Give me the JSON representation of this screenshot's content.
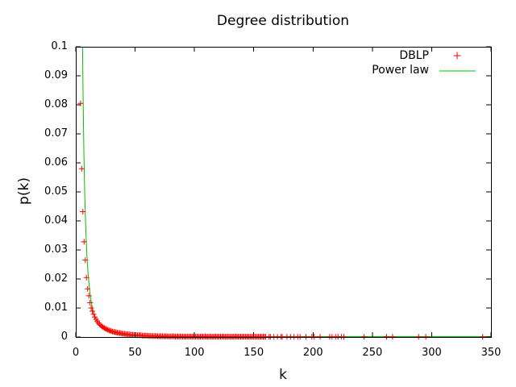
{
  "chart_data": {
    "type": "scatter",
    "title": "Degree distribution",
    "xlabel": "k",
    "ylabel": "p(k)",
    "xlim": [
      0,
      350
    ],
    "ylim": [
      0,
      0.1
    ],
    "grid": false,
    "background_color": "#ffffff",
    "axis_color": "#000000",
    "x_ticks": [
      0,
      50,
      100,
      150,
      200,
      250,
      300,
      350
    ],
    "y_ticks": [
      {
        "label": "0",
        "value": 0
      },
      {
        "label": "0.01",
        "value": 0.01
      },
      {
        "label": "0.02",
        "value": 0.02
      },
      {
        "label": "0.03",
        "value": 0.03
      },
      {
        "label": "0.04",
        "value": 0.04
      },
      {
        "label": "0.05",
        "value": 0.05
      },
      {
        "label": "0.06",
        "value": 0.06
      },
      {
        "label": "0.07",
        "value": 0.07
      },
      {
        "label": "0.08",
        "value": 0.08
      },
      {
        "label": "0.09",
        "value": 0.09
      },
      {
        "label": "0.1",
        "value": 0.1
      }
    ],
    "legend": {
      "position": "top-right",
      "entries": [
        {
          "label": "DBLP",
          "sample": "plus-marker",
          "color": "#ff0000"
        },
        {
          "label": "Power law",
          "sample": "line",
          "color": "#00c000"
        }
      ]
    },
    "series": [
      {
        "name": "DBLP",
        "type": "points",
        "marker": "plus",
        "color": "#ff0000",
        "points": [
          [
            4,
            0.0805
          ],
          [
            5,
            0.058
          ],
          [
            6,
            0.0432
          ],
          [
            7,
            0.0328
          ],
          [
            8,
            0.0265
          ],
          [
            9,
            0.0205
          ],
          [
            10,
            0.0166
          ],
          [
            11,
            0.0142
          ],
          [
            12,
            0.0118
          ],
          [
            13,
            0.01
          ],
          [
            14,
            0.0089
          ],
          [
            15,
            0.0078
          ],
          [
            16,
            0.0069
          ],
          [
            17,
            0.0061
          ],
          [
            18,
            0.0055
          ],
          [
            19,
            0.0049
          ],
          [
            20,
            0.0044
          ],
          [
            21,
            0.004
          ],
          [
            22,
            0.0037
          ],
          [
            23,
            0.0034
          ],
          [
            24,
            0.0031
          ],
          [
            25,
            0.0029
          ],
          [
            26,
            0.0027
          ],
          [
            27,
            0.0025
          ],
          [
            28,
            0.0023
          ],
          [
            29,
            0.0022
          ],
          [
            30,
            0.002
          ],
          [
            31,
            0.0019
          ],
          [
            32,
            0.0018
          ],
          [
            33,
            0.0017
          ],
          [
            34,
            0.0016
          ],
          [
            35,
            0.0015
          ],
          [
            36,
            0.0014
          ],
          [
            37,
            0.0014
          ],
          [
            38,
            0.0013
          ],
          [
            39,
            0.0012
          ],
          [
            40,
            0.0012
          ],
          [
            41,
            0.0011
          ],
          [
            42,
            0.001
          ],
          [
            43,
            0.001
          ],
          [
            44,
            0.0009
          ],
          [
            45,
            0.0009
          ],
          [
            46,
            0.0008
          ],
          [
            47,
            0.0008
          ],
          [
            48,
            0.0008
          ],
          [
            49,
            0.0007
          ],
          [
            50,
            0.0007
          ],
          [
            51,
            0.0007
          ],
          [
            52,
            0.0006
          ],
          [
            53,
            0.0006
          ],
          [
            54,
            0.0006
          ],
          [
            55,
            0.0006
          ],
          [
            56,
            0.0005
          ],
          [
            57,
            0.0005
          ],
          [
            58,
            0.0005
          ],
          [
            59,
            0.0005
          ],
          [
            60,
            0.0005
          ],
          [
            61,
            0.0004
          ],
          [
            62,
            0.0004
          ],
          [
            63,
            0.0003
          ],
          [
            64,
            0.0004
          ],
          [
            65,
            0.0003
          ],
          [
            66,
            0.0003
          ],
          [
            67,
            0.0004
          ],
          [
            68,
            0.0003
          ],
          [
            69,
            0.0003
          ],
          [
            70,
            0.0002
          ],
          [
            71,
            0.0003
          ],
          [
            72,
            0.0002
          ],
          [
            73,
            0.0003
          ],
          [
            74,
            0.0002
          ],
          [
            75,
            0.0002
          ],
          [
            76,
            0.0003
          ],
          [
            77,
            0.0002
          ],
          [
            78,
            0.0002
          ],
          [
            79,
            0.0002
          ],
          [
            80,
            0.0002
          ],
          [
            81,
            0.0002
          ],
          [
            82,
            0.0003
          ],
          [
            83,
            0.0002
          ],
          [
            84,
            0.0001
          ],
          [
            85,
            0.0002
          ],
          [
            86,
            0.0002
          ],
          [
            87,
            0.0001
          ],
          [
            88,
            0.0002
          ],
          [
            89,
            0.0002
          ],
          [
            90,
            0.0001
          ],
          [
            91,
            0.0002
          ],
          [
            92,
            0.0001
          ],
          [
            93,
            0.0001
          ],
          [
            94,
            0.0002
          ],
          [
            95,
            0.0001
          ],
          [
            96,
            0.0002
          ],
          [
            97,
            0.0001
          ],
          [
            98,
            0.0001
          ],
          [
            99,
            0.0002
          ],
          [
            100,
            0.0001
          ],
          [
            101,
            0.0001
          ],
          [
            102,
            0.0002
          ],
          [
            103,
            0.0001
          ],
          [
            104,
            0.0001
          ],
          [
            105,
            0.0001
          ],
          [
            106,
            0.0002
          ],
          [
            107,
            0.0001
          ],
          [
            108,
            0.0001
          ],
          [
            109,
            0.0002
          ],
          [
            110,
            0.0001
          ],
          [
            111,
            0.0001
          ],
          [
            112,
            0.0001
          ],
          [
            113,
            0.0002
          ],
          [
            114,
            0.0001
          ],
          [
            115,
            0.0001
          ],
          [
            116,
            0.0001
          ],
          [
            117,
            0.0001
          ],
          [
            118,
            0.0002
          ],
          [
            119,
            0.0001
          ],
          [
            120,
            0.0001
          ],
          [
            121,
            0.0001
          ],
          [
            122,
            0.0001
          ],
          [
            123,
            0.0001
          ],
          [
            124,
            0.0002
          ],
          [
            125,
            0.0001
          ],
          [
            126,
            0.0001
          ],
          [
            127,
            0.0001
          ],
          [
            128,
            0.0001
          ],
          [
            129,
            0.0001
          ],
          [
            130,
            0.0001
          ],
          [
            131,
            0.0001
          ],
          [
            132,
            0.0001
          ],
          [
            133,
            0.0001
          ],
          [
            134,
            0.0001
          ],
          [
            135,
            0.0002
          ],
          [
            136,
            0.0001
          ],
          [
            137,
            0.0001
          ],
          [
            138,
            0.0001
          ],
          [
            139,
            0.0001
          ],
          [
            140,
            0.0001
          ],
          [
            141,
            0.0001
          ],
          [
            142,
            0.0001
          ],
          [
            143,
            0.0001
          ],
          [
            144,
            0.0001
          ],
          [
            145,
            0.0001
          ],
          [
            146,
            0.0001
          ],
          [
            147,
            0.0001
          ],
          [
            148,
            0.0001
          ],
          [
            149,
            0.0001
          ],
          [
            150,
            0.0001
          ],
          [
            151,
            0.0001
          ],
          [
            152,
            5e-05
          ],
          [
            153,
            0.0001
          ],
          [
            154,
            0.0001
          ],
          [
            155,
            5e-05
          ],
          [
            156,
            0.0001
          ],
          [
            157,
            0.0001
          ],
          [
            158,
            5e-05
          ],
          [
            159,
            0.0001
          ],
          [
            160,
            0.0001
          ],
          [
            163,
            5e-05
          ],
          [
            164,
            5e-05
          ],
          [
            167,
            5e-05
          ],
          [
            170,
            5e-05
          ],
          [
            173,
            5e-05
          ],
          [
            174,
            5e-05
          ],
          [
            178,
            5e-05
          ],
          [
            181,
            5e-05
          ],
          [
            184,
            5e-05
          ],
          [
            187,
            5e-05
          ],
          [
            189,
            5e-05
          ],
          [
            194,
            5e-05
          ],
          [
            199,
            5e-05
          ],
          [
            201,
            5e-05
          ],
          [
            206,
            5e-05
          ],
          [
            214,
            5e-05
          ],
          [
            216,
            5e-05
          ],
          [
            219,
            5e-05
          ],
          [
            221,
            5e-05
          ],
          [
            224,
            5e-05
          ],
          [
            226,
            5e-05
          ],
          [
            243,
            5e-05
          ],
          [
            262,
            5e-05
          ],
          [
            267,
            5e-05
          ],
          [
            289,
            5e-05
          ],
          [
            295,
            5e-05
          ],
          [
            343,
            5e-05
          ]
        ]
      },
      {
        "name": "Power law",
        "type": "line",
        "color": "#00c000",
        "formula": "p(k) = 8.5 * k^(-2.55)",
        "coefficient": 8.5,
        "exponent": -2.55,
        "k_start": 5.71,
        "k_end": 350
      }
    ]
  }
}
